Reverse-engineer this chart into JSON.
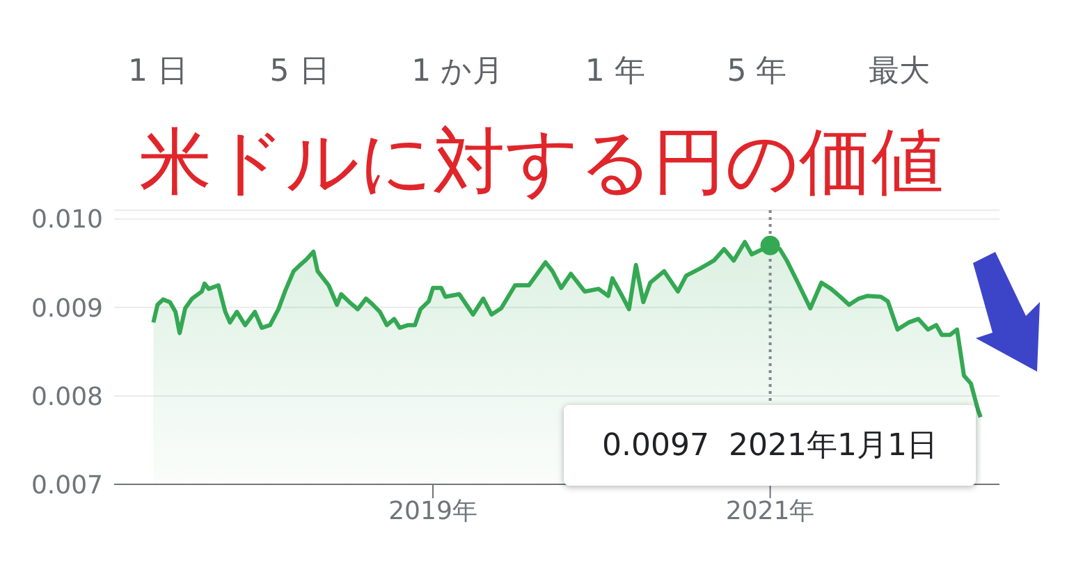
{
  "chart_data": {
    "type": "area",
    "title": "米ドルに対する円の価値",
    "annotations": [
      "1 日",
      "5 日",
      "1 か月",
      "1 年",
      "5 年",
      "最大",
      "0.0097  2021年1月1日"
    ],
    "x": [
      "2017-05-05",
      "2017-05-14",
      "2017-05-26",
      "2017-06-10",
      "2017-06-22",
      "2017-07-01",
      "2017-07-13",
      "2017-07-28",
      "2017-08-18",
      "2017-08-24",
      "2017-09-02",
      "2017-09-23",
      "2017-10-08",
      "2017-10-18",
      "2017-11-02",
      "2017-11-20",
      "2017-12-11",
      "2017-12-26",
      "2018-01-13",
      "2018-01-31",
      "2018-02-15",
      "2018-03-05",
      "2018-03-17",
      "2018-04-01",
      "2018-04-17",
      "2018-04-26",
      "2018-05-20",
      "2018-06-07",
      "2018-06-16",
      "2018-07-04",
      "2018-07-22",
      "2018-08-09",
      "2018-08-24",
      "2018-09-08",
      "2018-09-23",
      "2018-10-09",
      "2018-10-21",
      "2018-11-08",
      "2018-11-23",
      "2018-12-05",
      "2018-12-23",
      "2019-01-01",
      "2019-01-19",
      "2019-01-28",
      "2019-02-27",
      "2019-03-29",
      "2019-04-20",
      "2019-05-08",
      "2019-05-29",
      "2019-06-28",
      "2019-07-28",
      "2019-09-02",
      "2019-09-17",
      "2019-10-06",
      "2019-10-27",
      "2019-11-26",
      "2019-12-26",
      "2020-01-16",
      "2020-01-25",
      "2020-02-15",
      "2020-03-01",
      "2020-03-16",
      "2020-04-01",
      "2020-04-16",
      "2020-05-16",
      "2020-06-15",
      "2020-07-03",
      "2020-08-02",
      "2020-09-01",
      "2020-09-23",
      "2020-10-14",
      "2020-11-07",
      "2020-11-22",
      "2021-01-01",
      "2021-01-22",
      "2021-02-06",
      "2021-03-02",
      "2021-03-29",
      "2021-04-22",
      "2021-05-13",
      "2021-05-31",
      "2021-06-21",
      "2021-07-12",
      "2021-07-30",
      "2021-08-29",
      "2021-09-13",
      "2021-10-04",
      "2021-10-28",
      "2021-11-18",
      "2021-12-09",
      "2021-12-27",
      "2022-01-08",
      "2022-01-26",
      "2022-02-10",
      "2022-02-25",
      "2022-03-12",
      "2022-03-27",
      "2022-04-02"
    ],
    "series": [
      {
        "color": "#34a853",
        "values": [
          0.00883,
          0.00903,
          0.00909,
          0.00906,
          0.00895,
          0.00871,
          0.00899,
          0.0091,
          0.00918,
          0.00927,
          0.00921,
          0.00925,
          0.00895,
          0.00883,
          0.00895,
          0.0088,
          0.00895,
          0.00877,
          0.0088,
          0.00898,
          0.00919,
          0.00941,
          0.00947,
          0.00954,
          0.00963,
          0.00941,
          0.00925,
          0.00903,
          0.00915,
          0.00906,
          0.00898,
          0.0091,
          0.00903,
          0.00895,
          0.0088,
          0.00887,
          0.00877,
          0.0088,
          0.0088,
          0.00898,
          0.00907,
          0.00922,
          0.00922,
          0.00912,
          0.00915,
          0.00892,
          0.0091,
          0.00892,
          0.00899,
          0.00925,
          0.00925,
          0.00951,
          0.00941,
          0.00922,
          0.00938,
          0.00918,
          0.00921,
          0.00913,
          0.00933,
          0.00913,
          0.00898,
          0.00948,
          0.00906,
          0.00928,
          0.00941,
          0.00918,
          0.00936,
          0.00944,
          0.00953,
          0.00966,
          0.00953,
          0.00974,
          0.0096,
          0.0097,
          0.00966,
          0.00953,
          0.00928,
          0.00899,
          0.00928,
          0.00921,
          0.00913,
          0.00903,
          0.0091,
          0.00913,
          0.00912,
          0.00907,
          0.00875,
          0.00883,
          0.00887,
          0.00875,
          0.0088,
          0.00869,
          0.00869,
          0.00875,
          0.00823,
          0.00814,
          0.00785,
          0.00776
        ]
      }
    ],
    "xlim": [
      "2017-02-09",
      "2022-05-13"
    ],
    "xticks": [
      {
        "value": "2019-01-01",
        "label": "2019年"
      },
      {
        "value": "2021-01-01",
        "label": "2021年"
      }
    ],
    "ylim": [
      0.007,
      0.0101
    ],
    "yticks": [
      0.007,
      0.008,
      0.009,
      {
        "value": 0.01,
        "label": "0.010"
      }
    ],
    "ref_lines": [
      {
        "axis": "x",
        "value": "2021-01-01",
        "color": "#80868b",
        "line_style": "dotted"
      }
    ],
    "grid": "y",
    "marker": "none"
  }
}
